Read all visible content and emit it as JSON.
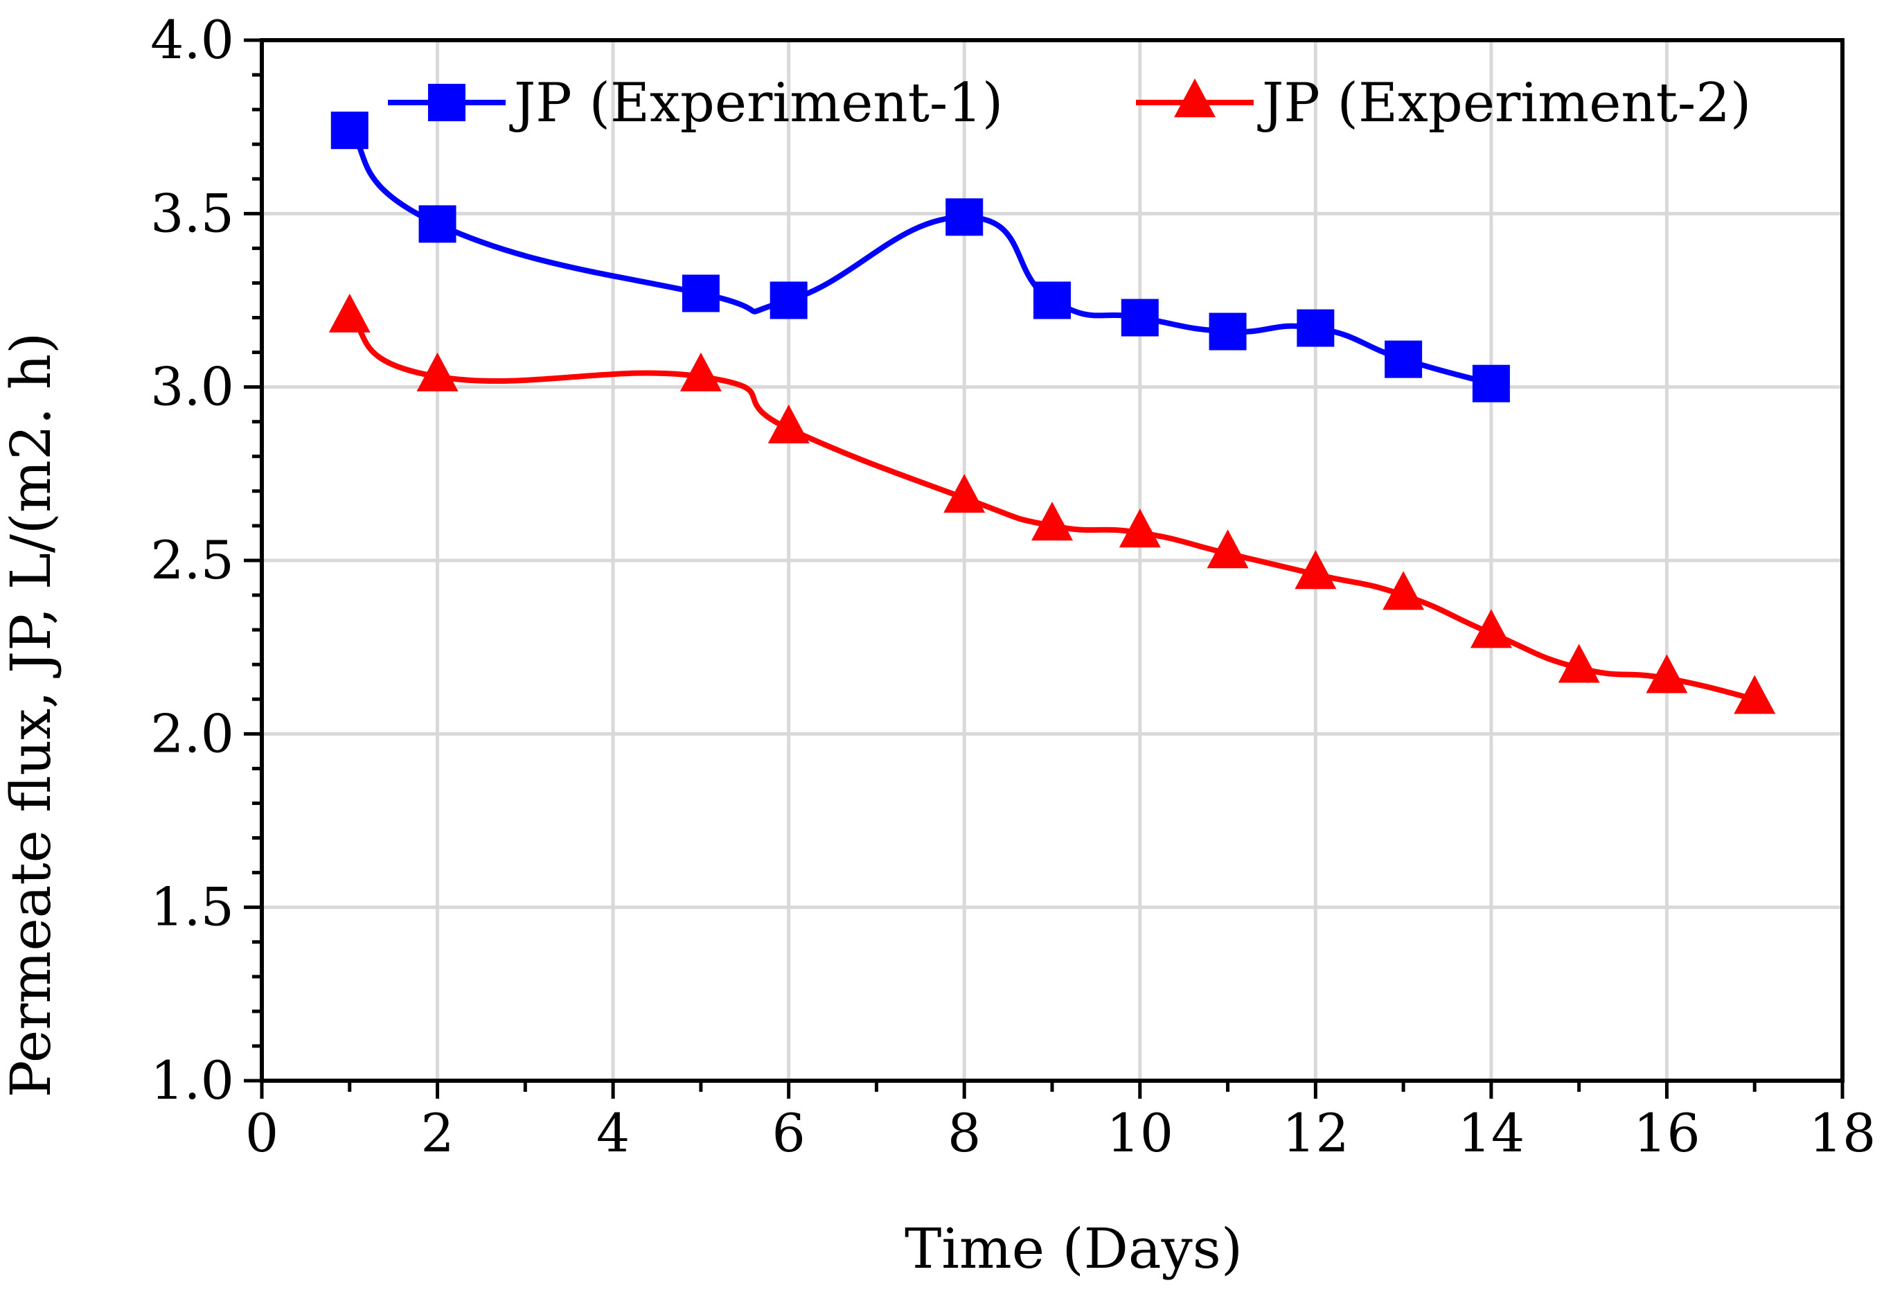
{
  "chart_data": {
    "type": "line",
    "xlabel": "Time (Days)",
    "ylabel": "Permeate flux, JP, L/(m2. h)",
    "xlim": [
      0,
      18
    ],
    "ylim": [
      1.0,
      4.0
    ],
    "xticks": [
      "0",
      "2",
      "4",
      "6",
      "8",
      "10",
      "12",
      "14",
      "16",
      "18"
    ],
    "yticks": [
      "1.0",
      "1.5",
      "2.0",
      "2.5",
      "3.0",
      "3.5",
      "4.0"
    ],
    "grid": true,
    "legend_position": "top",
    "series": [
      {
        "name": "JP (Experiment-1)",
        "marker": "square",
        "color": "#0000ff",
        "x": [
          1,
          2,
          5,
          6,
          8,
          9,
          10,
          11,
          12,
          13,
          14
        ],
        "y": [
          3.74,
          3.47,
          3.27,
          3.25,
          3.49,
          3.25,
          3.2,
          3.16,
          3.17,
          3.08,
          3.01
        ]
      },
      {
        "name": "JP (Experiment-2)",
        "marker": "triangle",
        "color": "#ff0000",
        "x": [
          1,
          2,
          5,
          6,
          8,
          9,
          10,
          11,
          12,
          13,
          14,
          15,
          16,
          17
        ],
        "y": [
          3.2,
          3.03,
          3.03,
          2.88,
          2.68,
          2.6,
          2.58,
          2.52,
          2.46,
          2.4,
          2.29,
          2.19,
          2.16,
          2.1
        ]
      }
    ]
  }
}
